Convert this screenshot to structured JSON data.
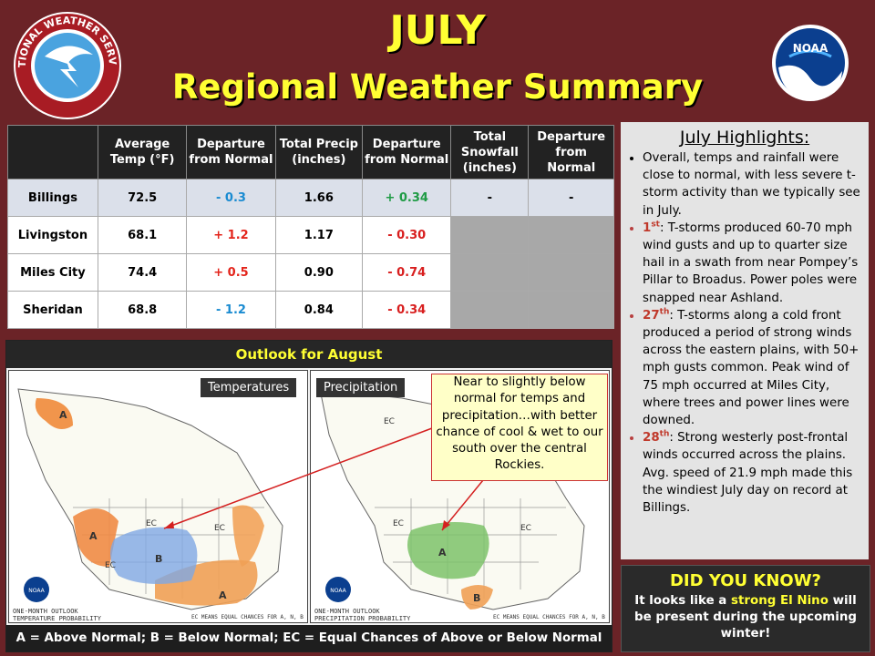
{
  "header": {
    "title": "JULY",
    "subtitle": "Regional Weather Summary",
    "nws_logo_text": "NATIONAL WEATHER SERVICE",
    "noaa_logo_text": "NOAA"
  },
  "table": {
    "headers": [
      "",
      "Average Temp (°F)",
      "Departure from Normal",
      "Total Precip (inches)",
      "Departure from Normal",
      "Total Snowfall (inches)",
      "Departure from Normal"
    ],
    "rows": [
      {
        "city": "Billings",
        "temp": "72.5",
        "temp_dep": "- 0.3",
        "precip": "1.66",
        "precip_dep": "+ 0.34",
        "snow": "-",
        "snow_dep": "-"
      },
      {
        "city": "Livingston",
        "temp": "68.1",
        "temp_dep": "+ 1.2",
        "precip": "1.17",
        "precip_dep": "- 0.30",
        "snow": "",
        "snow_dep": ""
      },
      {
        "city": "Miles City",
        "temp": "74.4",
        "temp_dep": "+ 0.5",
        "precip": "0.90",
        "precip_dep": "- 0.74",
        "snow": "",
        "snow_dep": ""
      },
      {
        "city": "Sheridan",
        "temp": "68.8",
        "temp_dep": "- 1.2",
        "precip": "0.84",
        "precip_dep": "- 0.34",
        "snow": "",
        "snow_dep": ""
      }
    ]
  },
  "highlights": {
    "title": "July Highlights",
    "colon": ":",
    "item1": "Overall, temps and rainfall were close to normal, with less severe t-storm activity than we typically see in July.",
    "item2_day": "1",
    "item2_sup": "st",
    "item2_text": ": T-storms produced 60-70 mph wind gusts and up to quarter size hail in a swath from near Pompey’s Pillar to Broadus. Power poles were snapped near Ashland.",
    "item3_day": "27",
    "item3_sup": "th",
    "item3_text": ": T-storms along a cold front produced a period of strong winds across the eastern plains, with 50+ mph gusts common. Peak wind of 75 mph occurred at Miles City, where trees and power lines were downed.",
    "item4_day": "28",
    "item4_sup": "th",
    "item4_text": ": Strong westerly post-frontal winds occurred across the plains. Avg. speed of 21.9 mph made this the windiest July day on record at Billings."
  },
  "did_you_know": {
    "title": "DID YOU KNOW?",
    "pre": "It looks like a ",
    "highlight": "strong El Nino",
    "post": " will be present during the upcoming winter!"
  },
  "outlook": {
    "title": "Outlook for August",
    "temp_label": "Temperatures",
    "precip_label": "Precipitation",
    "callout": "Near to slightly below normal for temps and precipitation…with better chance of cool & wet to our south over the central Rockies.",
    "legend": "A = Above Normal;  B = Below Normal;  EC = Equal Chances of Above or Below Normal",
    "temp_caption_1": "ONE-MONTH OUTLOOK",
    "temp_caption_2": "TEMPERATURE PROBABILITY",
    "precip_caption_1": "ONE-MONTH OUTLOOK",
    "precip_caption_2": "PRECIPITATION PROBABILITY",
    "map_credit": "EC MEANS EQUAL CHANCES FOR A, N, B",
    "noaa": "NOAA"
  },
  "colors": {
    "background": "#6b2327",
    "title": "#ffff33",
    "below_normal": "#1a8bd1",
    "above_normal": "#e3241b",
    "positive_precip": "#1f9b45"
  }
}
